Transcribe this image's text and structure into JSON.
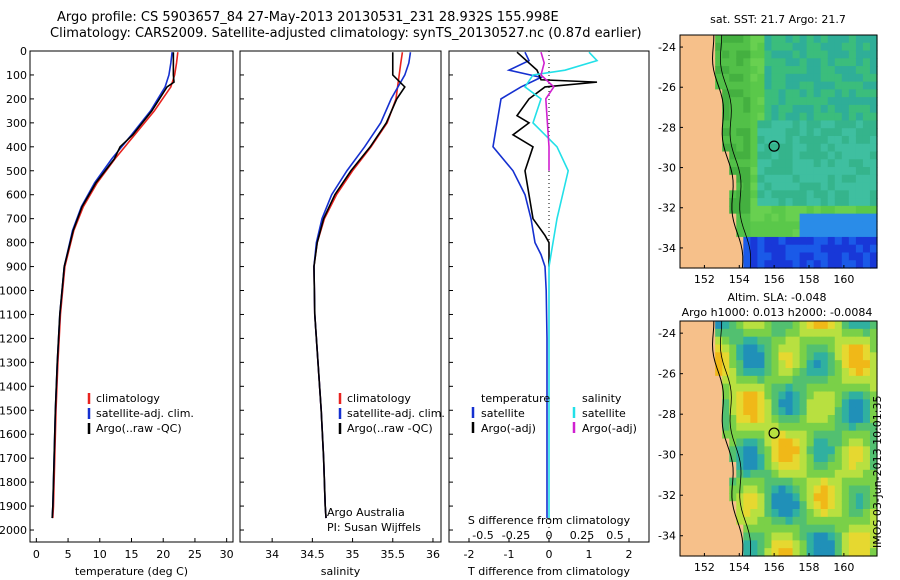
{
  "header": {
    "line1": "Argo profile: CS 5903657_84 27-May-2013 20130531_231 28.932S 155.998E",
    "line2": "Climatology: CARS2009. Satellite-adjusted climatology: synTS_20130527.nc (0.87d earlier)"
  },
  "colors": {
    "climatology": "#e8231f",
    "satellite": "#1530d0",
    "argo": "#000000",
    "sat_salinity": "#22e0e8",
    "argo_salinity": "#d020d0",
    "land": "#f6c08a"
  },
  "chart_data": [
    {
      "type": "line",
      "panel": "temperature",
      "xlabel": "temperature (deg C)",
      "ylim": [
        2050,
        0
      ],
      "xlim": [
        -1,
        31
      ],
      "xticks": [
        0,
        5,
        10,
        15,
        20,
        25,
        30
      ],
      "yticks": [
        0,
        100,
        200,
        300,
        400,
        500,
        600,
        700,
        800,
        900,
        1000,
        1100,
        1200,
        1300,
        1400,
        1500,
        1600,
        1700,
        1800,
        1900,
        2000
      ],
      "legend": [
        "climatology",
        "satellite-adj. clim.",
        "Argo(..raw -QC)"
      ],
      "series": [
        {
          "name": "climatology",
          "depth": [
            5,
            50,
            100,
            150,
            250,
            350,
            450,
            550,
            650,
            750,
            900,
            1100,
            1300,
            1500,
            1700,
            1900,
            1950
          ],
          "values": [
            22.3,
            22.1,
            21.8,
            21.2,
            18.6,
            15.5,
            12.4,
            9.6,
            7.4,
            5.9,
            4.5,
            3.8,
            3.4,
            3.1,
            2.9,
            2.7,
            2.6
          ]
        },
        {
          "name": "satellite-adj. clim.",
          "depth": [
            5,
            50,
            100,
            150,
            250,
            350,
            450,
            550,
            650,
            750,
            900,
            1100,
            1300,
            1500,
            1700,
            1900,
            1950
          ],
          "values": [
            21.4,
            21.2,
            20.9,
            20.3,
            18.0,
            15.0,
            11.9,
            9.2,
            7.1,
            5.7,
            4.4,
            3.7,
            3.3,
            3.0,
            2.8,
            2.6,
            2.5
          ]
        },
        {
          "name": "Argo(..raw -QC)",
          "depth": [
            5,
            50,
            100,
            130,
            150,
            250,
            350,
            400,
            450,
            550,
            650,
            750,
            900,
            1100,
            1300,
            1500,
            1700,
            1900,
            1950
          ],
          "values": [
            21.6,
            21.6,
            21.6,
            21.7,
            20.6,
            18.2,
            15.2,
            13.2,
            12.3,
            9.4,
            7.2,
            5.8,
            4.4,
            3.7,
            3.3,
            3.0,
            2.8,
            2.6,
            2.5
          ]
        }
      ]
    },
    {
      "type": "line",
      "panel": "salinity",
      "xlabel": "salinity",
      "ylim": [
        2050,
        0
      ],
      "xlim": [
        33.6,
        36.1
      ],
      "xticks": [
        34,
        34.5,
        35,
        35.5,
        36
      ],
      "legend": [
        "climatology",
        "satellite-adj. clim.",
        "Argo(..raw -QC)"
      ],
      "annotation": [
        "Argo Australia",
        "PI: Susan Wijffels"
      ],
      "series": [
        {
          "name": "climatology",
          "depth": [
            5,
            50,
            100,
            200,
            300,
            400,
            500,
            600,
            700,
            800,
            900,
            1100,
            1300,
            1500,
            1700,
            1900,
            1950
          ],
          "values": [
            35.62,
            35.6,
            35.58,
            35.54,
            35.43,
            35.23,
            35.0,
            34.8,
            34.65,
            34.56,
            34.52,
            34.53,
            34.57,
            34.61,
            34.64,
            34.66,
            34.67
          ]
        },
        {
          "name": "satellite-adj. clim.",
          "depth": [
            5,
            50,
            100,
            200,
            300,
            400,
            500,
            600,
            700,
            800,
            900,
            1100,
            1300,
            1500,
            1700,
            1900,
            1950
          ],
          "values": [
            35.72,
            35.7,
            35.65,
            35.48,
            35.35,
            35.15,
            34.93,
            34.74,
            34.62,
            34.55,
            34.52,
            34.53,
            34.57,
            34.61,
            34.64,
            34.66,
            34.67
          ]
        },
        {
          "name": "Argo(..raw -QC)",
          "depth": [
            5,
            50,
            100,
            150,
            200,
            300,
            400,
            500,
            600,
            700,
            800,
            900,
            1100,
            1300,
            1500,
            1700,
            1900,
            1950
          ],
          "values": [
            35.5,
            35.5,
            35.5,
            35.65,
            35.55,
            35.42,
            35.22,
            34.98,
            34.78,
            34.64,
            34.56,
            34.52,
            34.53,
            34.57,
            34.61,
            34.64,
            34.66,
            34.67
          ]
        }
      ]
    },
    {
      "type": "line",
      "panel": "differences",
      "xlabel": "T difference from climatology",
      "top_label": "S difference from climatology",
      "ylim": [
        2050,
        0
      ],
      "xlim": [
        -2.5,
        2.5
      ],
      "xticks": [
        -2,
        -1,
        0,
        1,
        2
      ],
      "top_ticks": [
        "-0.5",
        "-0.25",
        "0",
        "0.25",
        "0.5"
      ],
      "legend_temperature": [
        "temperature",
        "satellite",
        "Argo(-adj)"
      ],
      "legend_salinity": [
        "salinity",
        "satellite",
        "Argo(-adj)"
      ],
      "series": [
        {
          "name": "temperature satellite",
          "depth": [
            5,
            40,
            80,
            110,
            150,
            200,
            300,
            400,
            500,
            600,
            700,
            800,
            850,
            900,
            1000,
            1200,
            1500,
            1950
          ],
          "values": [
            -0.6,
            -0.5,
            -1.0,
            -0.2,
            -0.7,
            -1.2,
            -1.3,
            -1.4,
            -0.9,
            -0.6,
            -0.45,
            -0.35,
            -0.2,
            -0.1,
            -0.07,
            -0.05,
            -0.05,
            -0.05
          ]
        },
        {
          "name": "temperature Argo(-adj)",
          "depth": [
            5,
            80,
            120,
            130,
            150,
            200,
            270,
            300,
            350,
            400,
            500,
            600,
            700,
            770,
            800,
            900
          ],
          "values": [
            -0.8,
            -0.3,
            -0.2,
            1.2,
            -0.1,
            -0.5,
            -0.8,
            -0.5,
            -0.9,
            -0.4,
            -0.6,
            -0.5,
            -0.4,
            -0.1,
            0,
            0
          ]
        },
        {
          "name": "salinity satellite",
          "depth": [
            5,
            40,
            80,
            100,
            150,
            200,
            300,
            400,
            500,
            700,
            900,
            1200,
            1500,
            1950
          ],
          "values": [
            0.25,
            0.3,
            0.1,
            -0.1,
            -0.15,
            -0.05,
            -0.1,
            0.05,
            0.12,
            0.05,
            0,
            0,
            0,
            0
          ]
        },
        {
          "name": "salinity Argo(-adj)",
          "depth": [
            5,
            50,
            100,
            150,
            200,
            300,
            400,
            500
          ],
          "values": [
            -0.05,
            -0.03,
            -0.05,
            0.03,
            -0.02,
            -0.01,
            0,
            0
          ]
        }
      ]
    },
    {
      "type": "heatmap",
      "panel": "map-sst",
      "title": "sat. SST: 21.7  Argo: 21.7",
      "xticks": [
        152,
        154,
        156,
        158,
        160
      ],
      "yticks": [
        -24,
        -26,
        -28,
        -30,
        -32,
        -34
      ],
      "float_position": [
        155.998,
        -28.932
      ]
    },
    {
      "type": "heatmap",
      "panel": "map-sla",
      "title_line1": "Altim. SLA: -0.048",
      "title_line2": "Argo h1000: 0.013 h2000: -0.0084",
      "xticks": [
        152,
        154,
        156,
        158,
        160
      ],
      "yticks": [
        -24,
        -26,
        -28,
        -30,
        -32,
        -34
      ],
      "float_position": [
        155.998,
        -28.932
      ]
    }
  ],
  "footer": {
    "stamp": "IMOS 03-Jun-2013 10:01:35"
  }
}
